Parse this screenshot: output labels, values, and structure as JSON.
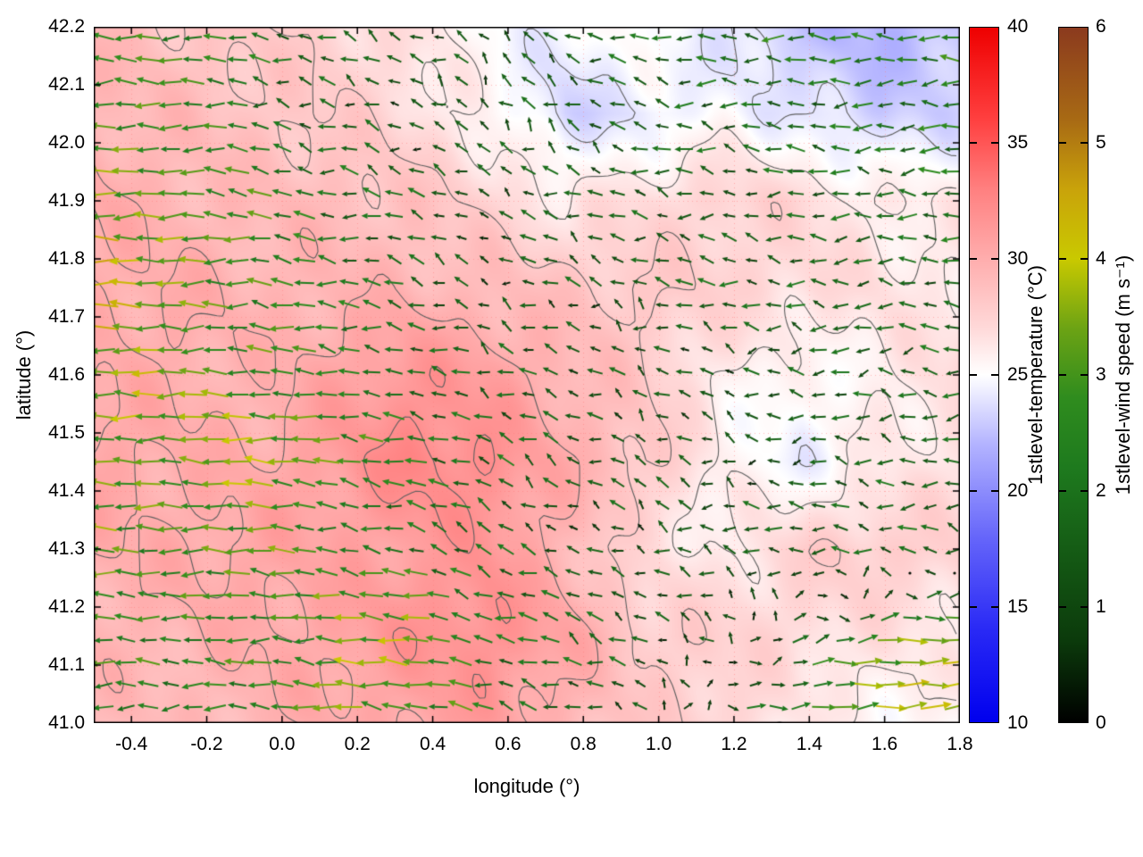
{
  "chart_data": {
    "type": "heatmap",
    "subtype": "temperature-field-with-contours-and-wind-vectors",
    "title": "",
    "xlabel": "longitude (°)",
    "ylabel": "latitude (°)",
    "x_range": [
      -0.5,
      1.8
    ],
    "y_range": [
      41.0,
      42.2
    ],
    "x_ticks": [
      -0.4,
      -0.2,
      0.0,
      0.2,
      0.4,
      0.6,
      0.8,
      1.0,
      1.2,
      1.4,
      1.6,
      1.8
    ],
    "y_ticks": [
      41.0,
      41.1,
      41.2,
      41.3,
      41.4,
      41.5,
      41.6,
      41.7,
      41.8,
      41.9,
      42.0,
      42.1,
      42.2
    ],
    "grid": {
      "show": true,
      "style": "dotted",
      "color": "rgba(255,120,120,0.5)"
    },
    "temperature_field": {
      "label": "1stlevel-temperature (°C)",
      "units": "°C",
      "range": [
        10,
        40
      ],
      "contour_levels": [
        24,
        26,
        28,
        30,
        32
      ],
      "contour_color": "#5f5f5f",
      "grid_lat_top_to_bottom": [
        42.2,
        42.05,
        41.9,
        41.75,
        41.6,
        41.45,
        41.3,
        41.15,
        41.0
      ],
      "grid_lon": [
        -0.5,
        -0.29,
        -0.08,
        0.13,
        0.34,
        0.55,
        0.76,
        0.97,
        1.18,
        1.39,
        1.59,
        1.8
      ],
      "values": [
        [
          29.0,
          28.5,
          28.0,
          27.5,
          26.5,
          25.0,
          24.5,
          25.5,
          24.0,
          22.5,
          22.0,
          22.5
        ],
        [
          29.5,
          29.0,
          28.5,
          28.0,
          27.0,
          25.5,
          23.5,
          24.0,
          25.0,
          24.0,
          23.0,
          23.5
        ],
        [
          30.0,
          29.5,
          29.0,
          29.0,
          28.5,
          27.5,
          26.0,
          27.0,
          27.5,
          27.0,
          26.0,
          26.0
        ],
        [
          30.0,
          30.0,
          29.5,
          29.5,
          29.5,
          29.0,
          28.5,
          28.0,
          27.5,
          27.0,
          26.5,
          26.0
        ],
        [
          30.0,
          30.0,
          29.5,
          30.5,
          31.5,
          31.0,
          29.5,
          28.0,
          26.0,
          25.0,
          26.0,
          27.0
        ],
        [
          30.5,
          30.0,
          30.0,
          31.0,
          32.5,
          32.0,
          30.0,
          28.5,
          25.5,
          24.5,
          26.0,
          26.5
        ],
        [
          30.0,
          30.0,
          30.5,
          30.5,
          31.0,
          31.5,
          29.5,
          26.5,
          26.0,
          27.5,
          28.0,
          27.5
        ],
        [
          29.5,
          29.5,
          30.0,
          30.5,
          31.5,
          32.0,
          30.5,
          28.0,
          27.5,
          27.0,
          26.5,
          26.0
        ],
        [
          29.0,
          29.0,
          29.5,
          30.0,
          30.5,
          31.0,
          29.5,
          28.0,
          27.5,
          26.0,
          25.5,
          25.5
        ]
      ]
    },
    "wind_field": {
      "label": "1stlevel-wind speed (m s⁻¹)",
      "units": "m s⁻¹",
      "range": [
        0,
        6
      ],
      "u": [
        [
          -2.6,
          -2.4,
          -2.0,
          -1.4,
          -1.0,
          -0.8,
          -1.2,
          -1.6,
          -2.0,
          -2.2,
          -2.4,
          -2.6
        ],
        [
          -3.0,
          -2.6,
          -2.0,
          -1.4,
          -0.9,
          -0.6,
          -0.9,
          -1.2,
          -1.6,
          -1.8,
          -2.0,
          -2.2
        ],
        [
          -3.6,
          -3.2,
          -2.6,
          -2.0,
          -1.4,
          -1.0,
          -1.1,
          -1.4,
          -1.5,
          -1.6,
          -1.8,
          -2.0
        ],
        [
          -4.0,
          -3.4,
          -2.6,
          -2.0,
          -1.5,
          -1.1,
          -1.0,
          -1.1,
          -1.4,
          -1.5,
          -1.6,
          -1.6
        ],
        [
          -3.6,
          -3.6,
          -3.0,
          -2.4,
          -1.9,
          -1.4,
          -1.1,
          -1.0,
          -1.1,
          -1.4,
          -1.5,
          -1.5
        ],
        [
          -3.2,
          -3.0,
          -3.6,
          -3.0,
          -2.1,
          -1.5,
          -1.1,
          -0.9,
          -1.0,
          -1.1,
          -1.4,
          -1.5
        ],
        [
          -3.0,
          -2.6,
          -3.0,
          -2.6,
          -2.0,
          -1.5,
          -1.1,
          -1.0,
          -1.1,
          -1.4,
          -1.5,
          -1.8
        ],
        [
          -2.6,
          -2.5,
          -2.6,
          -3.2,
          -3.6,
          -2.1,
          -1.5,
          -1.1,
          -0.8,
          1.6,
          3.0,
          3.6
        ],
        [
          -2.1,
          -2.1,
          -2.6,
          -3.0,
          -3.1,
          -2.1,
          -1.5,
          -0.9,
          1.2,
          3.0,
          3.6,
          4.0
        ]
      ],
      "v": [
        [
          0.2,
          0.1,
          0.3,
          0.4,
          0.5,
          0.6,
          0.4,
          0.2,
          -0.2,
          0.0,
          0.2,
          0.3
        ],
        [
          0.0,
          0.2,
          0.3,
          0.5,
          0.6,
          0.8,
          0.6,
          0.3,
          0.1,
          0.0,
          -0.1,
          0.0
        ],
        [
          0.1,
          0.0,
          0.2,
          0.3,
          0.5,
          0.6,
          0.5,
          0.3,
          0.2,
          0.1,
          0.0,
          0.0
        ],
        [
          0.0,
          0.1,
          0.2,
          0.3,
          0.4,
          0.5,
          0.6,
          0.4,
          0.2,
          0.1,
          0.1,
          0.0
        ],
        [
          0.2,
          0.0,
          0.1,
          0.3,
          0.5,
          0.6,
          0.5,
          0.4,
          0.3,
          0.2,
          0.1,
          0.1
        ],
        [
          0.0,
          0.1,
          0.2,
          0.4,
          0.6,
          0.7,
          0.6,
          0.5,
          0.4,
          0.2,
          0.1,
          0.0
        ],
        [
          0.1,
          0.0,
          0.2,
          0.3,
          0.6,
          0.8,
          0.7,
          0.5,
          0.3,
          0.2,
          0.1,
          0.1
        ],
        [
          0.0,
          0.1,
          0.2,
          0.3,
          0.4,
          0.6,
          0.6,
          0.5,
          0.3,
          0.3,
          0.2,
          0.2
        ],
        [
          0.1,
          0.0,
          0.1,
          0.2,
          0.3,
          0.5,
          0.5,
          0.4,
          0.3,
          0.3,
          0.3,
          0.2
        ]
      ]
    },
    "colorbars": [
      {
        "label": "1stlevel-temperature (°C)",
        "min": 10,
        "max": 40,
        "ticks": [
          10,
          15,
          20,
          25,
          30,
          35,
          40
        ],
        "stops": [
          [
            10,
            "#0000ee"
          ],
          [
            14,
            "#2929f5"
          ],
          [
            18,
            "#6666fa"
          ],
          [
            22,
            "#b3b3ff"
          ],
          [
            25,
            "#ffffff"
          ],
          [
            27,
            "#ffd9d9"
          ],
          [
            30,
            "#ffadad"
          ],
          [
            33,
            "#ff8080"
          ],
          [
            36,
            "#ff4040"
          ],
          [
            40,
            "#ee0000"
          ]
        ]
      },
      {
        "label": "1stlevel-wind speed (m s⁻¹)",
        "min": 0,
        "max": 6,
        "ticks": [
          0,
          1,
          2,
          3,
          4,
          5,
          6
        ],
        "stops": [
          [
            0,
            "#000000"
          ],
          [
            0.7,
            "#0b3a0b"
          ],
          [
            1.5,
            "#155c15"
          ],
          [
            2.2,
            "#1e7a1e"
          ],
          [
            2.8,
            "#2f8c1e"
          ],
          [
            3.4,
            "#6ca314"
          ],
          [
            4,
            "#c9c900"
          ],
          [
            4.6,
            "#c9a30a"
          ],
          [
            5.2,
            "#a86a14"
          ],
          [
            6,
            "#8b3a1e"
          ]
        ]
      }
    ]
  }
}
